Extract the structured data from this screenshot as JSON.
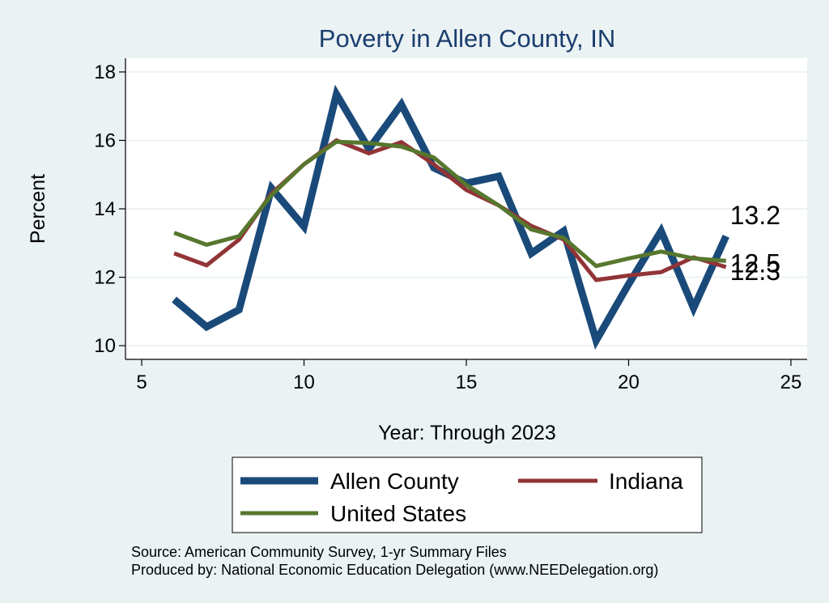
{
  "chart_data": {
    "type": "line",
    "title": "Poverty in Allen County, IN",
    "xlabel": "Year: Through 2023",
    "ylabel": "Percent",
    "xlim": [
      4.5,
      25.5
    ],
    "ylim": [
      9.6,
      18.4
    ],
    "xticks": [
      5,
      10,
      15,
      20,
      25
    ],
    "yticks": [
      10,
      12,
      14,
      16,
      18
    ],
    "grid": true,
    "legend_position": "bottom",
    "x": [
      6,
      7,
      8,
      9,
      10,
      11,
      12,
      13,
      14,
      15,
      16,
      17,
      18,
      19,
      20,
      21,
      22,
      23
    ],
    "series": [
      {
        "name": "Allen County",
        "color": "#1a4a7a",
        "width": 9,
        "values": [
          11.35,
          10.55,
          11.05,
          14.6,
          13.48,
          17.35,
          15.75,
          17.05,
          15.2,
          14.75,
          14.95,
          12.7,
          13.35,
          10.15,
          11.8,
          13.35,
          11.1,
          13.2
        ],
        "end_label": "13.2"
      },
      {
        "name": "Indiana",
        "color": "#923437",
        "width": 5,
        "values": [
          12.7,
          12.35,
          13.1,
          14.45,
          15.3,
          16.0,
          15.62,
          15.95,
          15.3,
          14.55,
          14.1,
          13.5,
          13.1,
          11.92,
          12.05,
          12.15,
          12.58,
          12.3
        ],
        "end_label": "12.3"
      },
      {
        "name": "United States",
        "color": "#57772e",
        "width": 5,
        "values": [
          13.3,
          12.95,
          13.2,
          14.4,
          15.3,
          15.96,
          15.92,
          15.82,
          15.5,
          14.7,
          14.1,
          13.4,
          13.15,
          12.33,
          12.55,
          12.75,
          12.55,
          12.48
        ],
        "end_label": "12.5"
      }
    ],
    "notes": [
      "Source: American Community Survey, 1-yr Summary Files",
      "Produced by: National Economic Education Delegation (www.NEEDelegation.org)"
    ]
  }
}
